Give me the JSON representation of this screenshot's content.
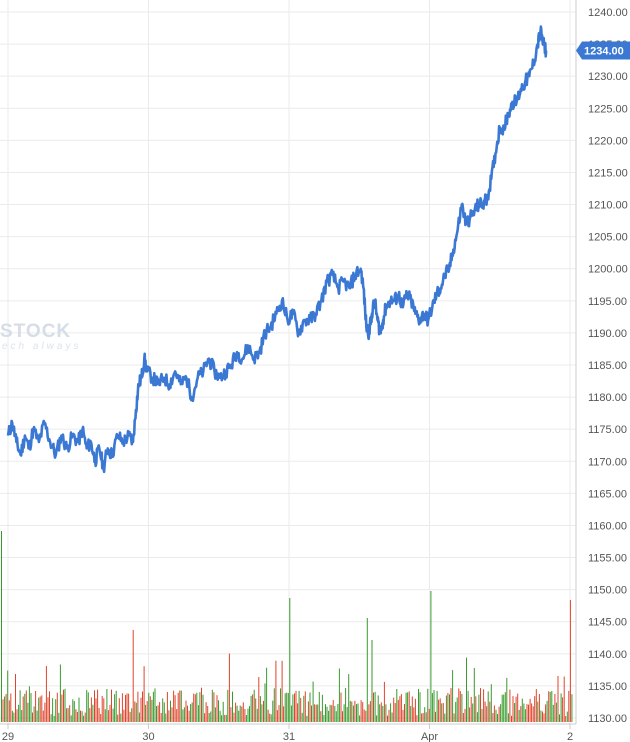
{
  "watermark": {
    "brand": "STOCK",
    "tagline": "ech always"
  },
  "colors": {
    "line": "#3a78d4",
    "volume_up": "#3a9a2e",
    "volume_down": "#e0442c",
    "grid": "#ebebeb",
    "axis": "#cccccc",
    "price_tag_bg": "#3a78d4"
  },
  "chart_data": {
    "type": "line",
    "title": "",
    "xlabel": "",
    "ylabel": "",
    "ylim": [
      1128,
      1241
    ],
    "y_ticks": [
      "1130.00",
      "1135.00",
      "1140.00",
      "1145.00",
      "1150.00",
      "1155.00",
      "1160.00",
      "1165.00",
      "1170.00",
      "1175.00",
      "1180.00",
      "1185.00",
      "1190.00",
      "1195.00",
      "1200.00",
      "1205.00",
      "1210.00",
      "1215.00",
      "1220.00",
      "1225.00",
      "1230.00",
      "1235.00",
      "1240.00"
    ],
    "x_ticks": [
      {
        "label": "29",
        "day": 0
      },
      {
        "label": "30",
        "day": 1
      },
      {
        "label": "31",
        "day": 2
      },
      {
        "label": "Apr",
        "day": 3
      },
      {
        "label": "2",
        "day": 4
      }
    ],
    "last_price": "1234.00",
    "grid": true,
    "series": [
      {
        "values": [
          [
            0.0,
            1174
          ],
          [
            0.03,
            1176
          ],
          [
            0.06,
            1173
          ],
          [
            0.09,
            1171
          ],
          [
            0.12,
            1174
          ],
          [
            0.15,
            1172
          ],
          [
            0.18,
            1175
          ],
          [
            0.22,
            1173
          ],
          [
            0.26,
            1176
          ],
          [
            0.3,
            1173
          ],
          [
            0.34,
            1171
          ],
          [
            0.38,
            1174
          ],
          [
            0.42,
            1172
          ],
          [
            0.46,
            1174
          ],
          [
            0.5,
            1173
          ],
          [
            0.53,
            1175
          ],
          [
            0.56,
            1172
          ],
          [
            0.59,
            1173
          ],
          [
            0.62,
            1170
          ],
          [
            0.65,
            1172
          ],
          [
            0.68,
            1169
          ],
          [
            0.71,
            1172
          ],
          [
            0.74,
            1171
          ],
          [
            0.78,
            1174
          ],
          [
            0.82,
            1173
          ],
          [
            0.86,
            1174
          ],
          [
            0.89,
            1173
          ],
          [
            0.91,
            1178
          ],
          [
            0.93,
            1182
          ],
          [
            0.95,
            1183
          ],
          [
            0.97,
            1186
          ],
          [
            0.99,
            1184
          ],
          [
            1.03,
            1183
          ],
          [
            1.07,
            1182
          ],
          [
            1.11,
            1183
          ],
          [
            1.15,
            1182
          ],
          [
            1.19,
            1184
          ],
          [
            1.23,
            1182
          ],
          [
            1.27,
            1183
          ],
          [
            1.31,
            1180
          ],
          [
            1.35,
            1183
          ],
          [
            1.39,
            1184
          ],
          [
            1.43,
            1186
          ],
          [
            1.47,
            1184
          ],
          [
            1.51,
            1183
          ],
          [
            1.55,
            1184
          ],
          [
            1.59,
            1185
          ],
          [
            1.63,
            1187
          ],
          [
            1.67,
            1186
          ],
          [
            1.71,
            1188
          ],
          [
            1.75,
            1186
          ],
          [
            1.79,
            1187
          ],
          [
            1.83,
            1190
          ],
          [
            1.87,
            1191
          ],
          [
            1.91,
            1193
          ],
          [
            1.95,
            1195
          ],
          [
            1.99,
            1192
          ],
          [
            2.03,
            1193
          ],
          [
            2.07,
            1190
          ],
          [
            2.11,
            1192
          ],
          [
            2.15,
            1192
          ],
          [
            2.19,
            1193
          ],
          [
            2.23,
            1195
          ],
          [
            2.27,
            1198
          ],
          [
            2.31,
            1199
          ],
          [
            2.35,
            1197
          ],
          [
            2.39,
            1198
          ],
          [
            2.43,
            1197
          ],
          [
            2.47,
            1199
          ],
          [
            2.51,
            1200
          ],
          [
            2.53,
            1197
          ],
          [
            2.55,
            1191
          ],
          [
            2.57,
            1190
          ],
          [
            2.59,
            1193
          ],
          [
            2.61,
            1195
          ],
          [
            2.63,
            1192
          ],
          [
            2.65,
            1190
          ],
          [
            2.67,
            1192
          ],
          [
            2.69,
            1194
          ],
          [
            2.72,
            1195
          ],
          [
            2.75,
            1195
          ],
          [
            2.78,
            1196
          ],
          [
            2.81,
            1194
          ],
          [
            2.84,
            1196
          ],
          [
            2.87,
            1195
          ],
          [
            2.9,
            1193
          ],
          [
            2.93,
            1192
          ],
          [
            2.96,
            1193
          ],
          [
            2.99,
            1192
          ],
          [
            3.02,
            1194
          ],
          [
            3.05,
            1196
          ],
          [
            3.08,
            1197
          ],
          [
            3.11,
            1199
          ],
          [
            3.14,
            1200
          ],
          [
            3.17,
            1203
          ],
          [
            3.2,
            1206
          ],
          [
            3.23,
            1210
          ],
          [
            3.26,
            1207
          ],
          [
            3.29,
            1208
          ],
          [
            3.32,
            1209
          ],
          [
            3.35,
            1210
          ],
          [
            3.38,
            1210
          ],
          [
            3.41,
            1211
          ],
          [
            3.44,
            1214
          ],
          [
            3.47,
            1218
          ],
          [
            3.5,
            1222
          ],
          [
            3.53,
            1222
          ],
          [
            3.56,
            1224
          ],
          [
            3.59,
            1226
          ],
          [
            3.62,
            1226
          ],
          [
            3.65,
            1228
          ],
          [
            3.68,
            1229
          ],
          [
            3.71,
            1230
          ],
          [
            3.74,
            1232
          ],
          [
            3.77,
            1235
          ],
          [
            3.79,
            1237
          ],
          [
            3.81,
            1235
          ],
          [
            3.83,
            1234
          ]
        ]
      }
    ]
  }
}
